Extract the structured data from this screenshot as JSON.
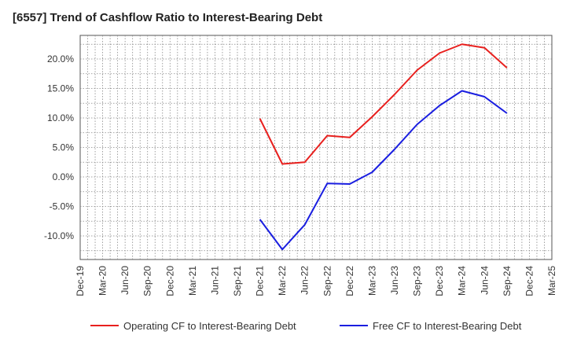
{
  "chart_data": {
    "type": "line",
    "title": "[6557]  Trend of Cashflow Ratio to Interest-Bearing Debt",
    "xlabel": "",
    "ylabel": "",
    "ylim": [
      -14,
      24
    ],
    "yticks": [
      -10,
      -5,
      0,
      5,
      10,
      15,
      20
    ],
    "ytick_labels": [
      "-10.0%",
      "-5.0%",
      "0.0%",
      "5.0%",
      "10.0%",
      "15.0%",
      "20.0%"
    ],
    "categories": [
      "Dec-19",
      "Mar-20",
      "Jun-20",
      "Sep-20",
      "Dec-20",
      "Mar-21",
      "Jun-21",
      "Sep-21",
      "Dec-21",
      "Mar-22",
      "Jun-22",
      "Sep-22",
      "Dec-22",
      "Mar-23",
      "Jun-23",
      "Sep-23",
      "Dec-23",
      "Mar-24",
      "Jun-24",
      "Sep-24",
      "Dec-24",
      "Mar-25"
    ],
    "grid": true,
    "legend_position": "bottom",
    "series": [
      {
        "name": "Operating CF to Interest-Bearing Debt",
        "color": "#e8201e",
        "values": [
          null,
          null,
          null,
          null,
          null,
          null,
          null,
          null,
          9.9,
          2.2,
          2.5,
          7.0,
          6.7,
          10.2,
          14.0,
          18.1,
          21.0,
          22.5,
          21.9,
          18.5,
          null,
          null
        ]
      },
      {
        "name": "Free CF to Interest-Bearing Debt",
        "color": "#1a1ee0",
        "values": [
          null,
          null,
          null,
          null,
          null,
          null,
          null,
          null,
          -7.2,
          -12.3,
          -8.1,
          -1.1,
          -1.2,
          0.8,
          4.7,
          8.9,
          12.1,
          14.6,
          13.6,
          10.8,
          null,
          null
        ]
      }
    ]
  }
}
